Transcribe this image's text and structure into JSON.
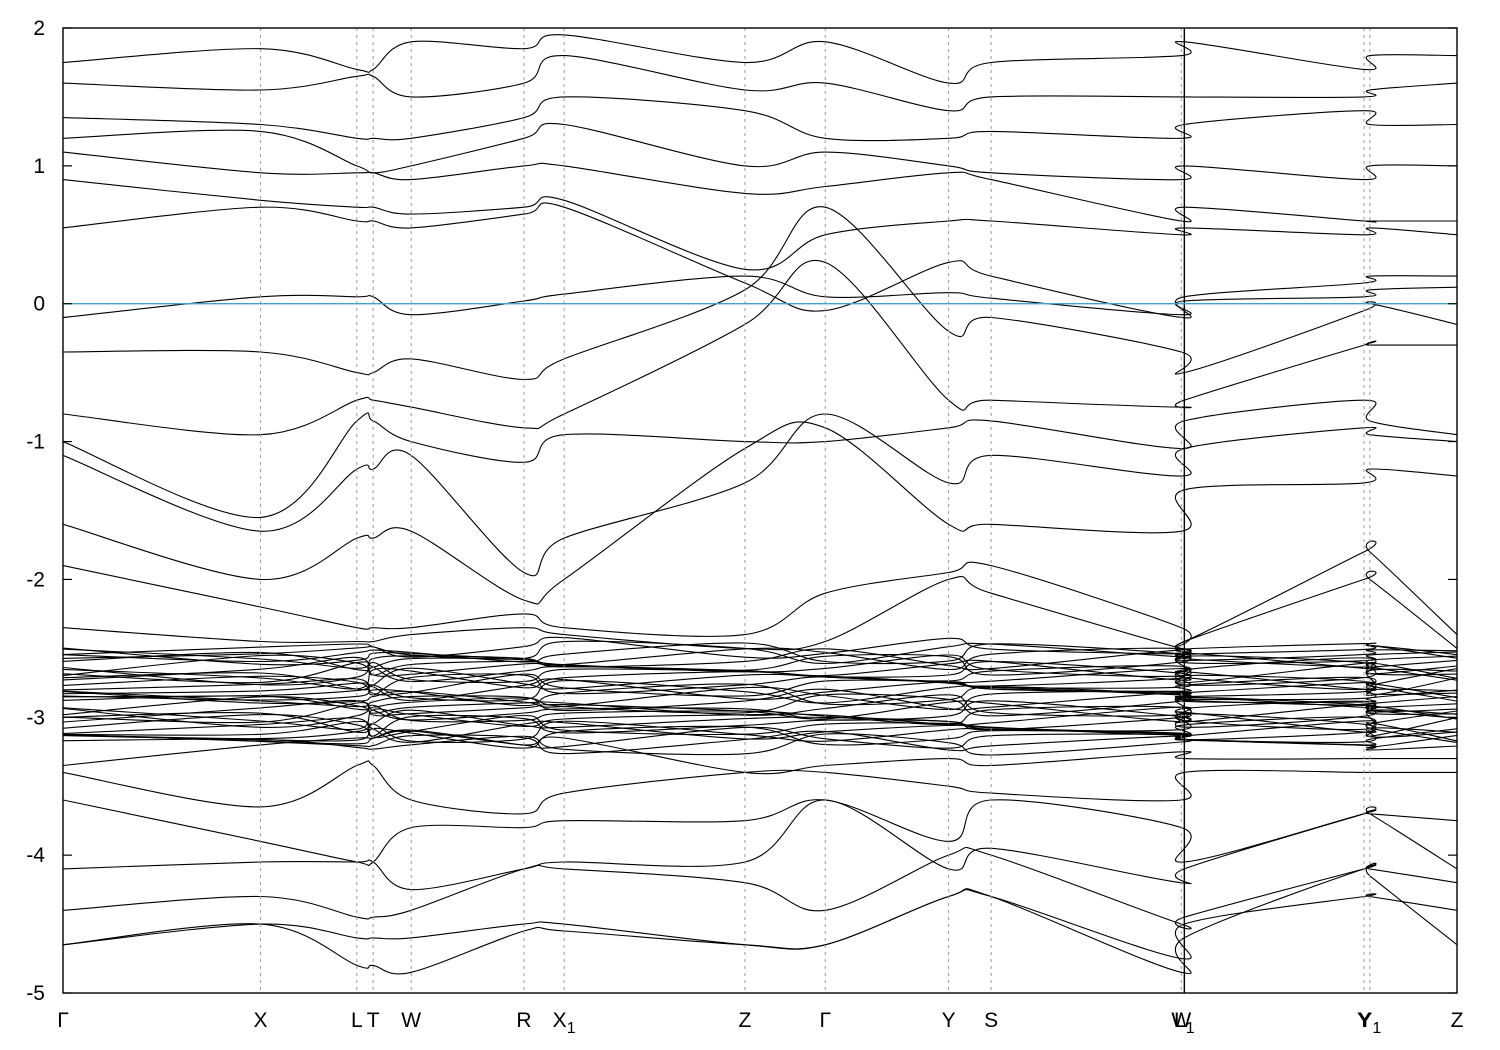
{
  "chart_data": {
    "type": "line",
    "title": "",
    "xlabel": "",
    "ylabel": "",
    "ylim": [
      -5,
      2
    ],
    "yticks": [
      {
        "value": 2,
        "label": "2"
      },
      {
        "value": 1,
        "label": "1"
      },
      {
        "value": 0,
        "label": "0"
      },
      {
        "value": -1,
        "label": "-1"
      },
      {
        "value": -2,
        "label": "-2"
      },
      {
        "value": -3,
        "label": "-3"
      },
      {
        "value": -4,
        "label": "-4"
      },
      {
        "value": -5,
        "label": "-5"
      }
    ],
    "xlim": [
      0,
      1.0
    ],
    "kpoints": [
      {
        "pos": 0.0,
        "label": "Γ",
        "sub": ""
      },
      {
        "pos": 0.1417,
        "label": "X",
        "sub": ""
      },
      {
        "pos": 0.2108,
        "label": "L",
        "sub": ""
      },
      {
        "pos": 0.2225,
        "label": "T",
        "sub": ""
      },
      {
        "pos": 0.2498,
        "label": "W",
        "sub": ""
      },
      {
        "pos": 0.3307,
        "label": "R",
        "sub": ""
      },
      {
        "pos": 0.3595,
        "label": "X",
        "sub": "1"
      },
      {
        "pos": 0.4892,
        "label": "Z",
        "sub": ""
      },
      {
        "pos": 0.5468,
        "label": "Γ",
        "sub": ""
      },
      {
        "pos": 0.6353,
        "label": "Y",
        "sub": ""
      },
      {
        "pos": 0.6658,
        "label": "S",
        "sub": ""
      },
      {
        "pos": 0.8022,
        "label": "W",
        "sub": ""
      },
      {
        "pos": 0.8044,
        "label": "L",
        "sub": "1"
      },
      {
        "pos": 0.9333,
        "label": "Y",
        "sub": ""
      },
      {
        "pos": 0.9375,
        "label": "Y",
        "sub": "1"
      },
      {
        "pos": 1.0,
        "label": "Z",
        "sub": ""
      }
    ],
    "grid": "vertical dashed at high-symmetry points",
    "legend": "none",
    "fermi_level": 0,
    "fermi_color": "#3aa6c9",
    "band_color": "#000000",
    "bands": [
      {
        "y": [
          -0.1,
          0.05,
          0.05,
          0.05,
          -0.08,
          0.02,
          0.07,
          0.2,
          0.05,
          0.08,
          0.04,
          -0.08,
          0.02,
          0.05,
          0.1,
          0.12
        ]
      },
      {
        "y": [
          0.55,
          0.7,
          0.6,
          0.6,
          0.55,
          0.65,
          0.7,
          0.15,
          -0.05,
          0.3,
          0.2,
          -0.1,
          0.05,
          0.15,
          0.2,
          0.2
        ]
      },
      {
        "y": [
          0.9,
          0.75,
          0.7,
          0.7,
          0.65,
          0.7,
          0.75,
          0.25,
          0.5,
          0.6,
          0.6,
          0.5,
          0.55,
          0.5,
          0.55,
          0.5
        ]
      },
      {
        "y": [
          1.1,
          0.95,
          0.95,
          0.95,
          0.9,
          1.0,
          1.0,
          0.8,
          0.85,
          0.95,
          0.9,
          0.6,
          0.7,
          0.6,
          0.6,
          0.6
        ]
      },
      {
        "y": [
          1.2,
          1.25,
          1.0,
          0.95,
          1.0,
          1.2,
          1.3,
          1.0,
          1.1,
          1.0,
          0.95,
          0.9,
          1.0,
          0.9,
          1.0,
          1.0
        ]
      },
      {
        "y": [
          1.35,
          1.3,
          1.2,
          1.2,
          1.2,
          1.35,
          1.5,
          1.4,
          1.2,
          1.2,
          1.25,
          1.2,
          1.3,
          1.4,
          1.3,
          1.3
        ]
      },
      {
        "y": [
          1.6,
          1.55,
          1.65,
          1.65,
          1.5,
          1.6,
          1.8,
          1.55,
          1.6,
          1.4,
          1.5,
          1.5,
          1.5,
          1.5,
          1.55,
          1.6
        ]
      },
      {
        "y": [
          1.75,
          1.85,
          1.7,
          1.7,
          1.9,
          1.85,
          1.95,
          1.75,
          1.9,
          1.6,
          1.75,
          1.8,
          1.9,
          1.7,
          1.8,
          1.8
        ]
      },
      {
        "y": [
          -0.35,
          -0.35,
          -0.5,
          -0.5,
          -0.4,
          -0.55,
          -0.4,
          0.1,
          0.7,
          -0.2,
          -0.1,
          -0.35,
          -0.5,
          -0.05,
          0.0,
          -0.15
        ]
      },
      {
        "y": [
          -0.8,
          -0.95,
          -0.7,
          -0.7,
          -0.75,
          -0.9,
          -0.8,
          -0.15,
          0.3,
          -0.7,
          -0.7,
          -0.75,
          -0.7,
          -0.3,
          -0.3,
          -0.3
        ]
      },
      {
        "y": [
          -1.0,
          -1.55,
          -0.85,
          -0.85,
          -1.0,
          -1.15,
          -0.95,
          -1.0,
          -1.0,
          -0.9,
          -0.85,
          -1.05,
          -0.85,
          -0.7,
          -0.85,
          -0.95
        ]
      },
      {
        "y": [
          -1.1,
          -1.65,
          -1.2,
          -1.2,
          -1.1,
          -1.95,
          -1.7,
          -1.3,
          -0.8,
          -1.3,
          -1.1,
          -1.25,
          -1.05,
          -0.9,
          -0.95,
          -1.0
        ]
      },
      {
        "y": [
          -1.6,
          -2.0,
          -1.7,
          -1.7,
          -1.65,
          -2.15,
          -2.0,
          -1.05,
          -0.9,
          -1.6,
          -1.6,
          -1.65,
          -1.35,
          -1.3,
          -1.2,
          -1.25
        ]
      },
      {
        "y": [
          -1.9,
          -2.2,
          -2.35,
          -2.35,
          -2.35,
          -2.25,
          -2.35,
          -2.4,
          -2.1,
          -1.95,
          -1.9,
          -2.35,
          -2.45,
          -1.8,
          -1.8,
          -2.4
        ]
      },
      {
        "y": [
          -2.35,
          -2.45,
          -2.45,
          -2.45,
          -2.4,
          -2.35,
          -2.4,
          -2.5,
          -2.45,
          -2.0,
          -2.1,
          -2.5,
          -2.45,
          -2.0,
          -2.0,
          -2.5
        ]
      },
      {
        "y": [
          -3.35,
          -3.2,
          -3.15,
          -3.15,
          -3.1,
          -3.2,
          -3.15,
          -3.4,
          -3.35,
          -3.3,
          -3.35,
          -3.25,
          -3.3,
          -3.3,
          -3.3,
          -3.3
        ]
      },
      {
        "y": [
          -3.4,
          -3.65,
          -3.35,
          -3.35,
          -3.6,
          -3.7,
          -3.55,
          -3.4,
          -3.4,
          -3.5,
          -3.55,
          -3.6,
          -3.4,
          -3.4,
          -3.4,
          -3.4
        ]
      },
      {
        "y": [
          -3.6,
          -3.9,
          -4.05,
          -4.05,
          -3.8,
          -3.8,
          -3.75,
          -3.75,
          -3.6,
          -3.9,
          -3.6,
          -3.8,
          -4.05,
          -3.7,
          -3.7,
          -3.75
        ]
      },
      {
        "y": [
          -4.1,
          -4.05,
          -4.05,
          -4.05,
          -4.25,
          -4.1,
          -4.05,
          -4.05,
          -3.6,
          -4.1,
          -3.95,
          -4.2,
          -4.1,
          -3.7,
          -3.7,
          -4.1
        ]
      },
      {
        "y": [
          -4.4,
          -4.3,
          -4.45,
          -4.45,
          -4.4,
          -4.1,
          -4.1,
          -4.2,
          -4.4,
          -4.0,
          -4.0,
          -4.5,
          -4.45,
          -4.1,
          -4.1,
          -4.2
        ]
      },
      {
        "y": [
          -4.65,
          -4.5,
          -4.8,
          -4.8,
          -4.85,
          -4.55,
          -4.55,
          -4.65,
          -4.65,
          -4.3,
          -4.3,
          -4.85,
          -4.6,
          -4.1,
          -4.15,
          -4.65
        ]
      },
      {
        "y": [
          -4.65,
          -4.5,
          -4.6,
          -4.6,
          -4.6,
          -4.5,
          -4.5,
          -4.65,
          -4.65,
          -4.3,
          -4.3,
          -4.75,
          -4.5,
          -4.3,
          -4.3,
          -4.4
        ]
      }
    ],
    "flat_band_range": [
      -3.2,
      -2.5
    ],
    "flat_band_count": 34
  }
}
